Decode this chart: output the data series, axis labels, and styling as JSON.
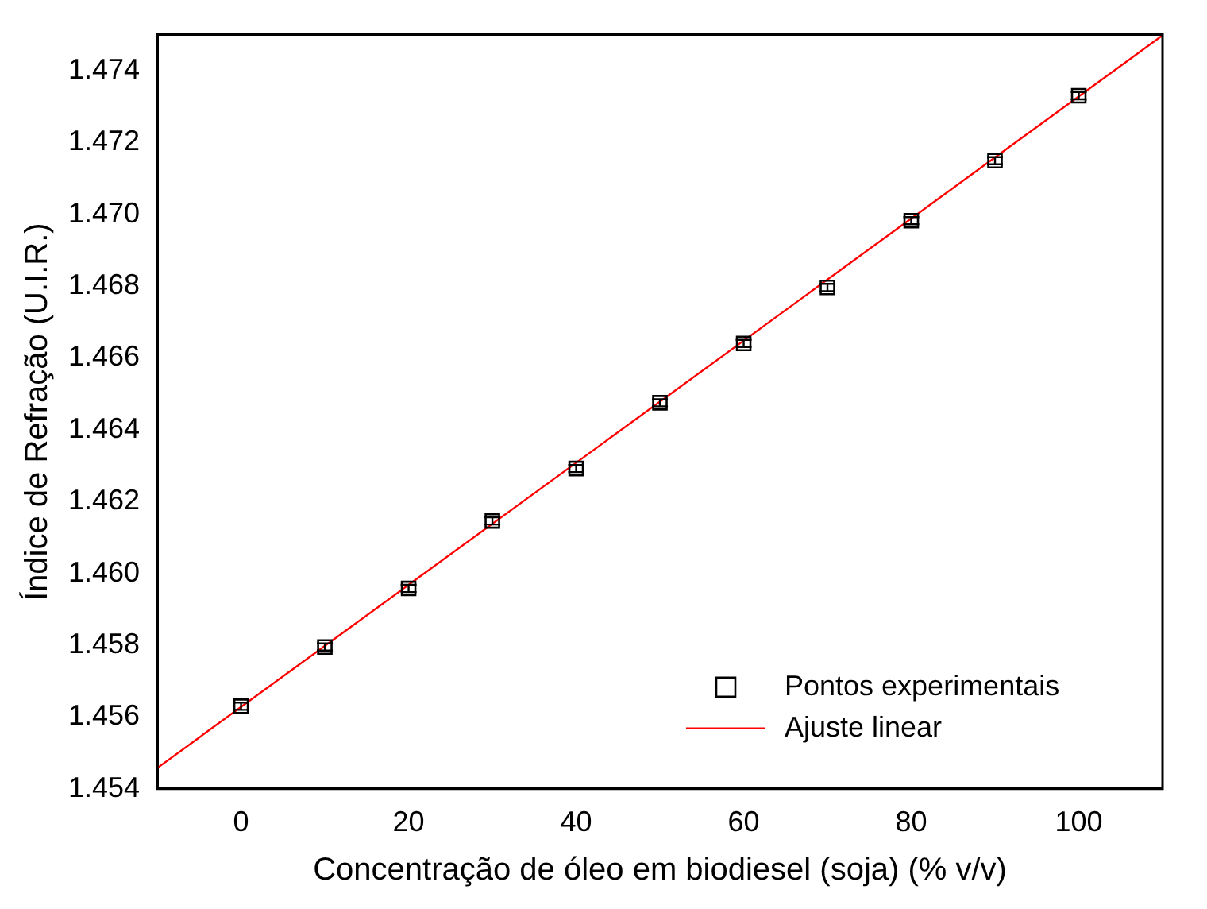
{
  "chart_data": {
    "type": "scatter",
    "xlabel": "Concentração de óleo em biodiesel (soja) (% v/v)",
    "ylabel": "Índice de Refração (U.I.R.)",
    "xlim": [
      -10,
      110
    ],
    "xticks": [
      0,
      20,
      40,
      60,
      80,
      100
    ],
    "ylim": [
      1.454,
      1.475
    ],
    "yticks": [
      {
        "value": 1.454,
        "label": "1.454"
      },
      {
        "value": 1.456,
        "label": "1.456"
      },
      {
        "value": 1.458,
        "label": "1.458"
      },
      {
        "value": 1.46,
        "label": "1.460"
      },
      {
        "value": 1.462,
        "label": "1.462"
      },
      {
        "value": 1.464,
        "label": "1.464"
      },
      {
        "value": 1.466,
        "label": "1.466"
      },
      {
        "value": 1.468,
        "label": "1.468"
      },
      {
        "value": 1.47,
        "label": "1.470"
      },
      {
        "value": 1.472,
        "label": "1.472"
      },
      {
        "value": 1.474,
        "label": "1.474"
      }
    ],
    "grid": false,
    "legend": "bottom right",
    "series": [
      {
        "name": "Pontos experimentais",
        "type": "scatter",
        "marker": "square",
        "color": "#000000",
        "x": [
          0,
          10,
          20,
          30,
          40,
          50,
          60,
          70,
          80,
          90,
          100
        ],
        "values": [
          1.4563,
          1.45795,
          1.45958,
          1.46146,
          1.46292,
          1.46475,
          1.4664,
          1.46796,
          1.46982,
          1.47149,
          1.4733
        ],
        "errors": [
          0.0001,
          0.0001,
          0.0001,
          0.0001,
          0.0001,
          0.0001,
          0.0001,
          0.0001,
          0.0001,
          0.0001,
          0.0001
        ]
      },
      {
        "name": "Ajuste linear",
        "type": "line",
        "marker": "none",
        "line_style": "solid",
        "color": "#ff0000",
        "x": [
          -10,
          110
        ],
        "values": [
          1.45458,
          1.47498
        ]
      }
    ]
  }
}
